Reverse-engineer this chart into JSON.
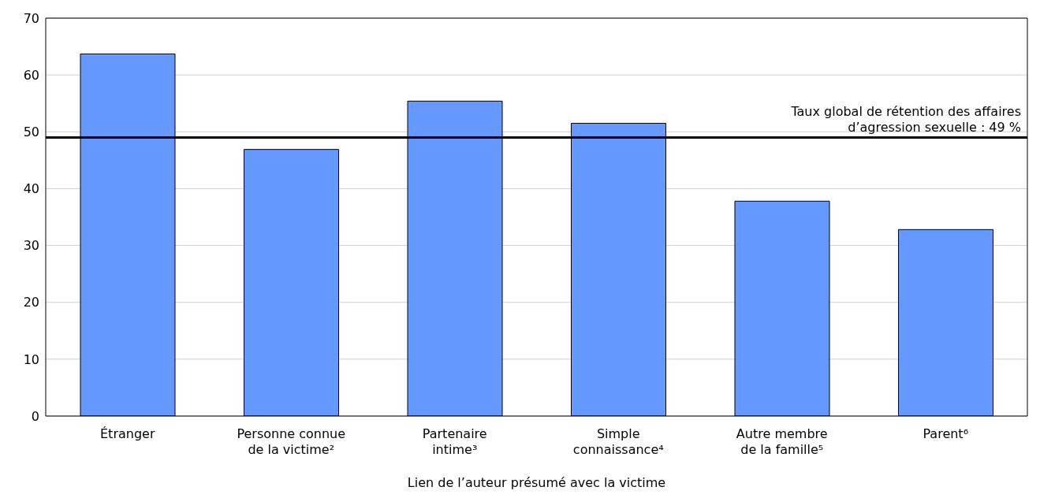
{
  "chart_data": {
    "type": "bar",
    "xlabel": "Lien de l’auteur présumé avec la victime",
    "categories": [
      "Étranger",
      "Personne connue\nde la victime²",
      "Partenaire\nintime³",
      "Simple\nconnaissance⁴",
      "Autre membre\nde la famille⁵",
      "Parent⁶"
    ],
    "values": [
      63.7,
      46.9,
      55.4,
      51.5,
      37.8,
      32.8
    ],
    "color": "#6699ff",
    "ylim": [
      0,
      70
    ],
    "yticks": [
      0,
      10,
      20,
      30,
      40,
      50,
      60,
      70
    ],
    "grid": "y",
    "legend": false,
    "ref_lines": [
      {
        "axis": "y",
        "value": 49,
        "label": "Taux global de rétention des affaires\nd’agression sexuelle : 49 %",
        "color": "#000000"
      }
    ]
  }
}
